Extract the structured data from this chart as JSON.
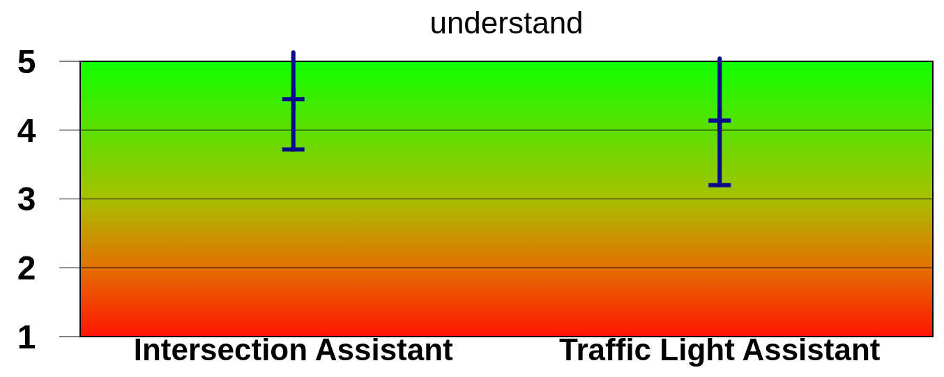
{
  "chart_data": {
    "type": "scatter",
    "title": "understand",
    "categories": [
      "Intersection Assistant",
      "Traffic Light Assistant"
    ],
    "series": [
      {
        "color": "#0a0a8c",
        "values": [
          4.45,
          4.14
        ],
        "errors": [
          [
            3.72,
            5.13
          ],
          [
            3.2,
            5.04
          ]
        ]
      }
    ],
    "ylim": [
      1,
      5
    ],
    "yticks": [
      1,
      2,
      3,
      4,
      5
    ],
    "grid": "y",
    "marker": "cross"
  }
}
